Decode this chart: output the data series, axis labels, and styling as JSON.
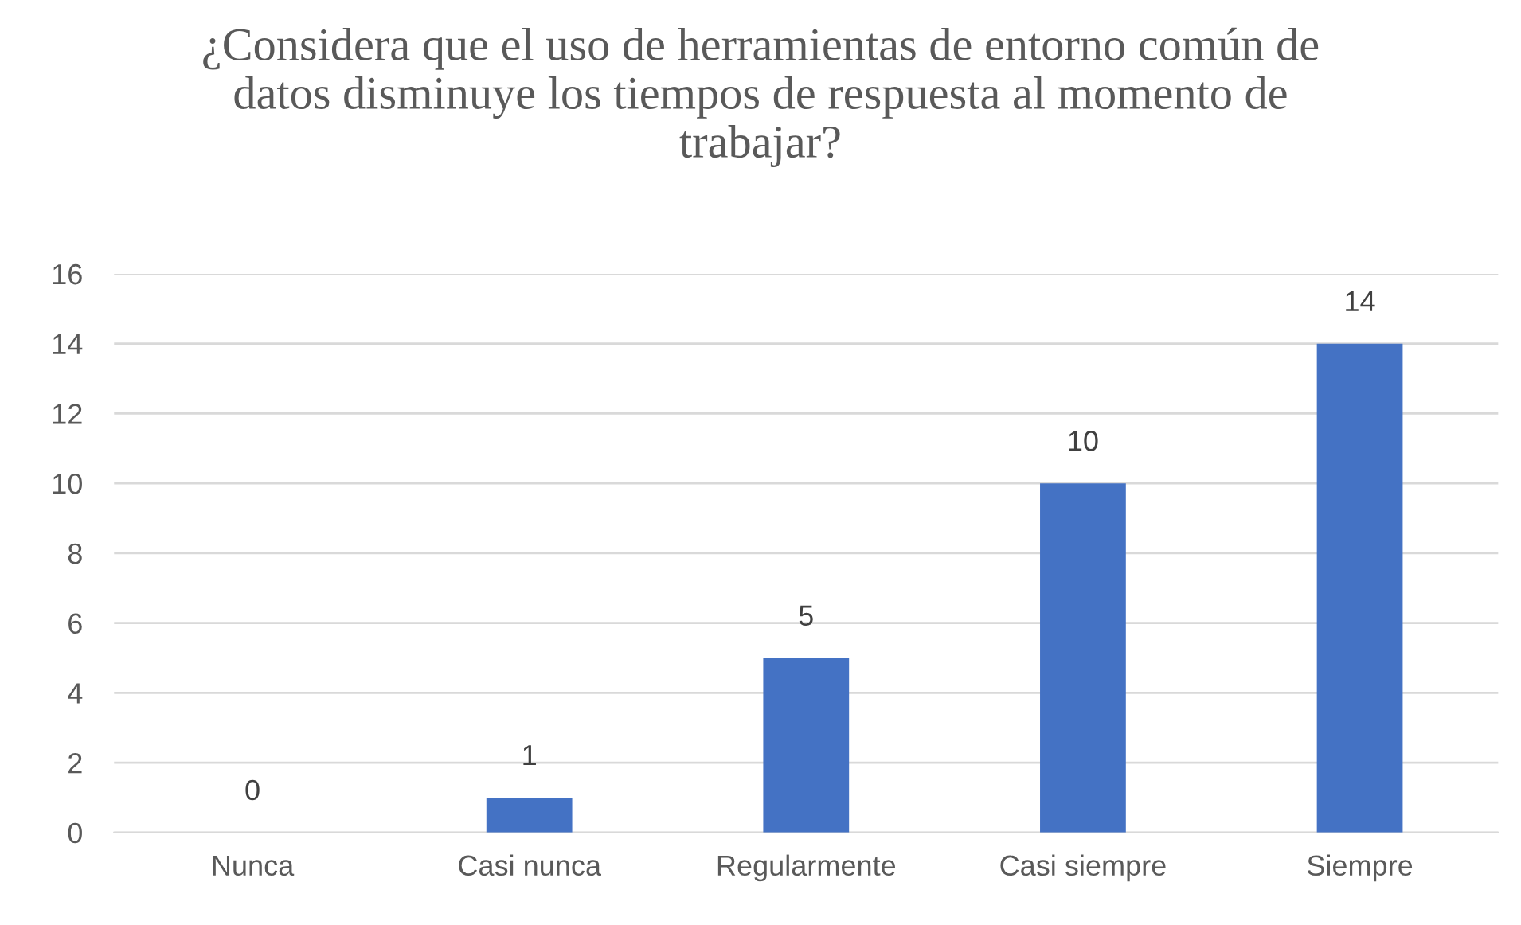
{
  "chart_data": {
    "type": "bar",
    "title": "¿Considera que el uso de herramientas de entorno común de datos disminuye los tiempos de respuesta al momento de trabajar?",
    "categories": [
      "Nunca",
      "Casi nunca",
      "Regularmente",
      "Casi siempre",
      "Siempre"
    ],
    "values": [
      0,
      1,
      5,
      10,
      14
    ],
    "color": "#4472c4",
    "ylim": [
      0,
      16
    ],
    "yticks": [
      0,
      2,
      4,
      6,
      8,
      10,
      12,
      14,
      16
    ],
    "grid": "y",
    "data_labels": true
  }
}
